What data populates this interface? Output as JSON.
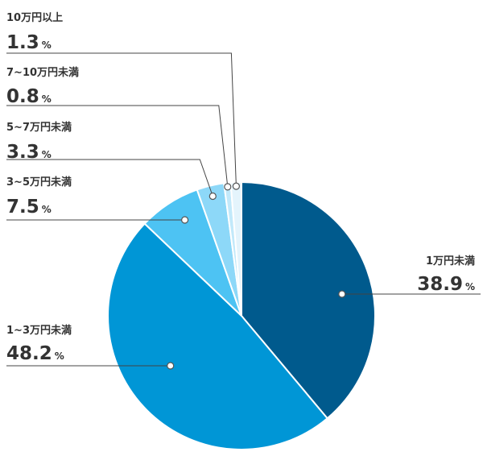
{
  "chart_data": {
    "type": "pie",
    "start_angle_deg": 0,
    "direction": "clockwise",
    "slices": [
      {
        "label": "1万円未満",
        "value": 38.9,
        "display": "38.9",
        "color": "#005A8D"
      },
      {
        "label": "1~3万円未満",
        "value": 48.2,
        "display": "48.2",
        "color": "#0096D6"
      },
      {
        "label": "3~5万円未満",
        "value": 7.5,
        "display": "7.5",
        "color": "#4DC3F3"
      },
      {
        "label": "5~7万円未満",
        "value": 3.3,
        "display": "3.3",
        "color": "#8DD8F8"
      },
      {
        "label": "7~10万円未満",
        "value": 0.8,
        "display": "0.8",
        "color": "#C2E9FA"
      },
      {
        "label": "10万円以上",
        "value": 1.3,
        "display": "1.3",
        "color": "#E4F4FC"
      }
    ],
    "unit": "%"
  }
}
